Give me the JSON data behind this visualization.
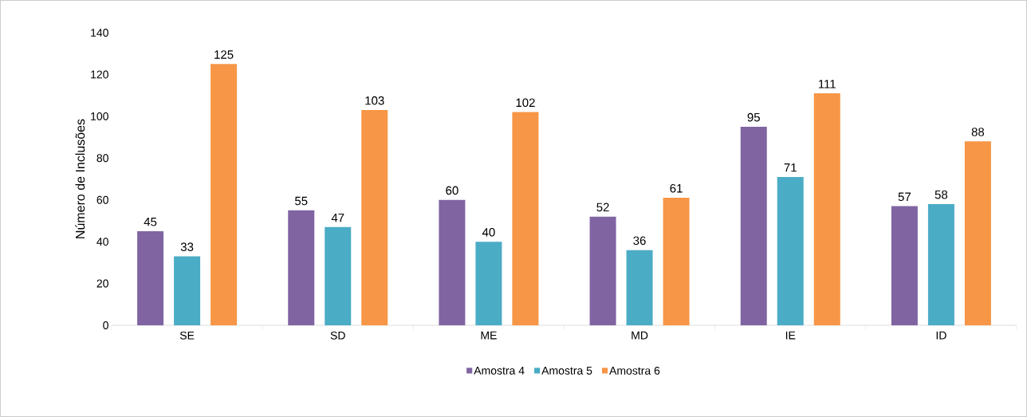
{
  "chart_data": {
    "type": "bar",
    "ylabel": "Número de Inclusões",
    "categories": [
      "SE",
      "SD",
      "ME",
      "MD",
      "IE",
      "ID"
    ],
    "series": [
      {
        "name": "Amostra 4",
        "color": "#8064a2",
        "values": [
          45,
          55,
          60,
          52,
          95,
          57
        ]
      },
      {
        "name": "Amostra 5",
        "color": "#4bacc6",
        "values": [
          33,
          47,
          40,
          36,
          71,
          58
        ]
      },
      {
        "name": "Amostra 6",
        "color": "#f79646",
        "values": [
          125,
          103,
          102,
          61,
          111,
          88
        ]
      }
    ],
    "ylim": [
      0,
      140
    ],
    "yticks": [
      0,
      20,
      40,
      60,
      80,
      100,
      120,
      140
    ],
    "data_labels": true,
    "legend": "bottom",
    "grid": false
  }
}
